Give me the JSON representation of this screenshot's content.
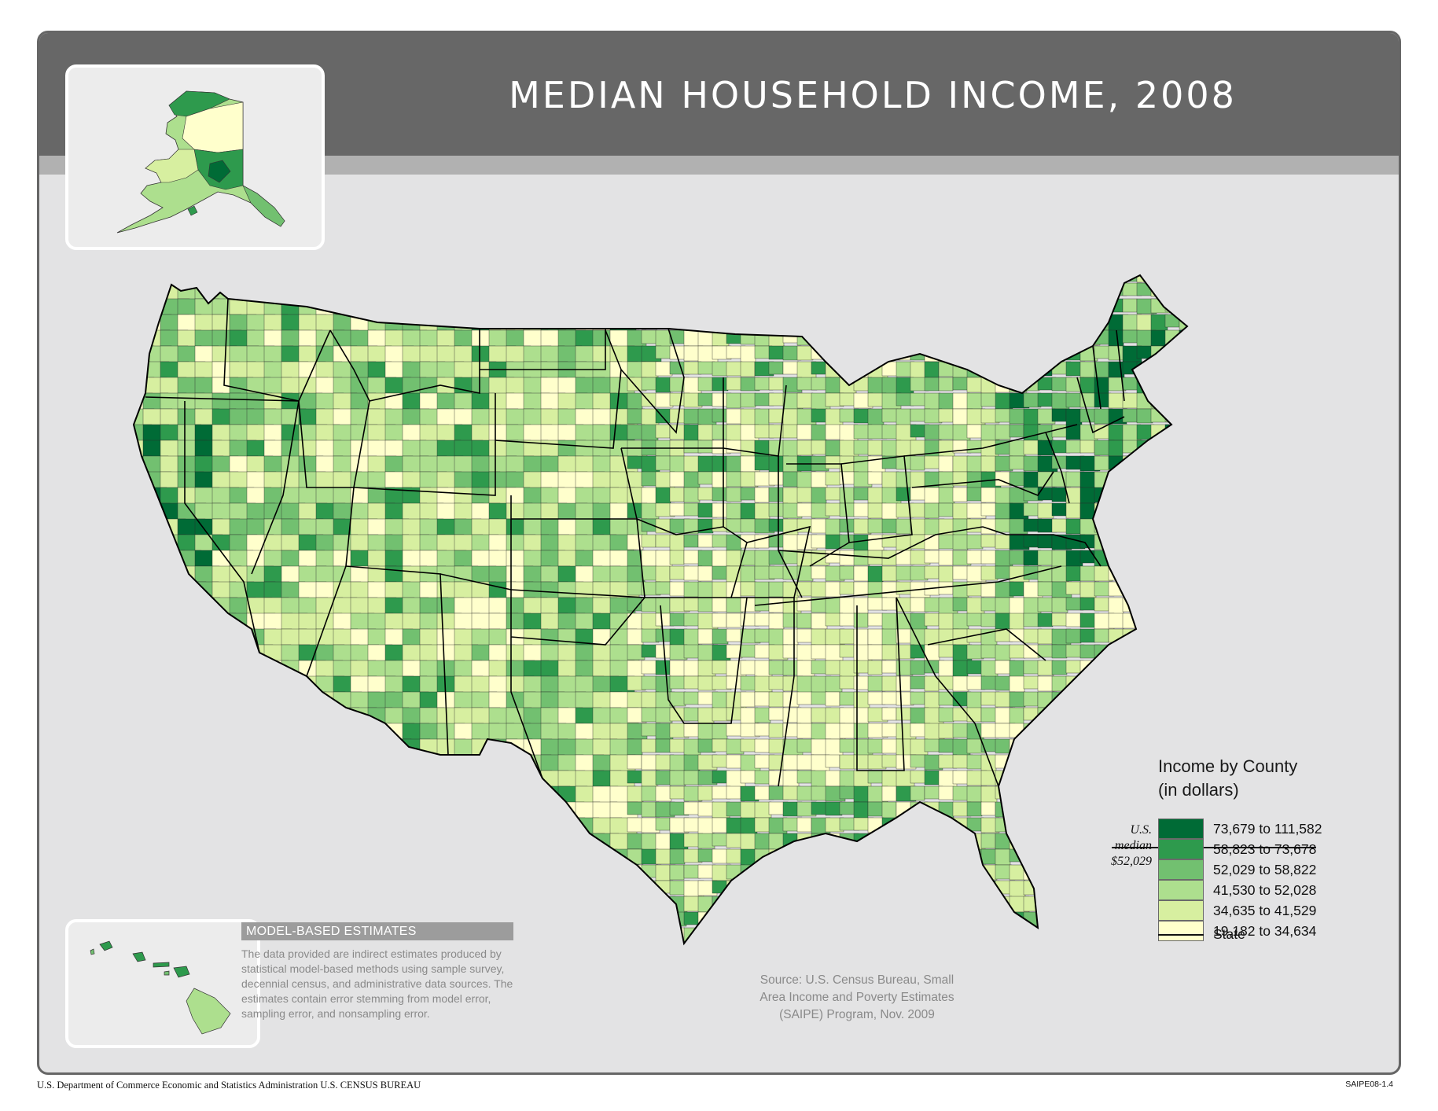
{
  "title": "MEDIAN HOUSEHOLD INCOME, 2008",
  "legend": {
    "title_line1": "Income by County",
    "title_line2": "(in dollars)",
    "classes": [
      {
        "label": "73,679 to 111,582",
        "color": "#006b36"
      },
      {
        "label": "58,823 to 73,678",
        "color": "#2e9a4d"
      },
      {
        "label": "52,029 to 58,822",
        "color": "#72c070"
      },
      {
        "label": "41,530 to 52,028",
        "color": "#addf8e"
      },
      {
        "label": "34,635 to 41,529",
        "color": "#d7efa0"
      },
      {
        "label": "19,182 to 34,634",
        "color": "#ffffcc"
      }
    ],
    "median_line1": "U.S.",
    "median_line2": "median",
    "median_line3": "$52,029",
    "state_label": "State"
  },
  "model_based": {
    "heading": "MODEL-BASED ESTIMATES",
    "body": "The data provided are indirect estimates produced by statistical model-based methods using sample survey, decennial census, and administrative data sources. The estimates contain error stemming from model error, sampling error, and nonsampling error."
  },
  "source": {
    "line1": "Source: U.S. Census Bureau, Small",
    "line2": "Area Income and Poverty Estimates",
    "line3": "(SAIPE) Program, Nov. 2009"
  },
  "footer": {
    "left": "U.S. Department of Commerce  Economic and Statistics Administration  U.S. CENSUS BUREAU",
    "right": "SAIPE08-1.4"
  },
  "map": {
    "palette": [
      "#006b36",
      "#2e9a4d",
      "#72c070",
      "#addf8e",
      "#d7efa0",
      "#ffffcc"
    ],
    "border_color": "#2a2a2a",
    "state_border_color": "#000000"
  }
}
